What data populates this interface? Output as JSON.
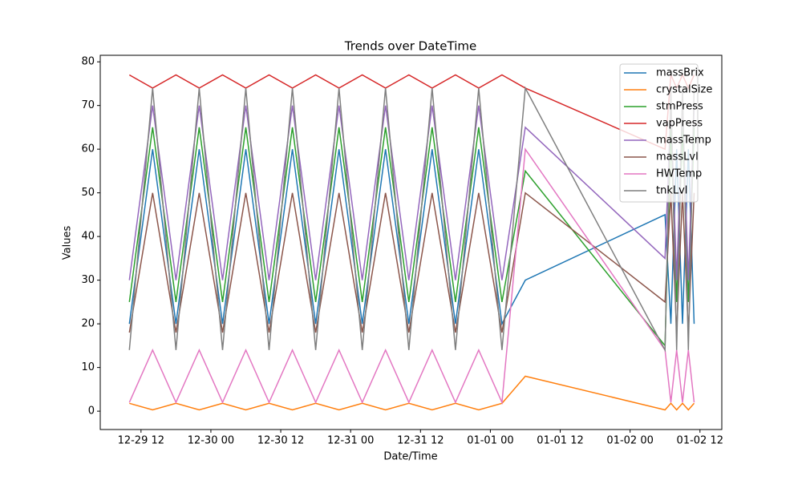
{
  "chart_data": {
    "type": "line",
    "title": "Trends over DateTime",
    "x_label": "Date/Time",
    "y_label": "Values",
    "x": [
      "12-29 10:00",
      "12-29 14:00",
      "12-29 18:00",
      "12-29 22:00",
      "12-30 02:00",
      "12-30 06:00",
      "12-30 10:00",
      "12-30 14:00",
      "12-30 18:00",
      "12-30 22:00",
      "12-31 02:00",
      "12-31 06:00",
      "12-31 10:00",
      "12-31 14:00",
      "12-31 18:00",
      "12-31 22:00",
      "01-01 02:00",
      "01-01 06:00",
      "01-02 06:00",
      "01-02 07:00",
      "01-02 08:00",
      "01-02 09:00",
      "01-02 10:00",
      "01-02 11:00"
    ],
    "series": [
      {
        "name": "massBrix",
        "color": "#1f77b4",
        "values": [
          20,
          60,
          20,
          60,
          20,
          60,
          20,
          60,
          20,
          60,
          20,
          60,
          20,
          60,
          20,
          60,
          20,
          30,
          45,
          20,
          60,
          20,
          60,
          20
        ]
      },
      {
        "name": "crystalSize",
        "color": "#ff7f0e",
        "values": [
          1.8,
          0.3,
          1.8,
          0.3,
          1.8,
          0.3,
          1.8,
          0.3,
          1.8,
          0.3,
          1.8,
          0.3,
          1.8,
          0.3,
          1.8,
          0.3,
          1.8,
          8,
          0.3,
          1.8,
          0.3,
          1.8,
          0.3,
          1.8
        ]
      },
      {
        "name": "stmPress",
        "color": "#2ca02c",
        "values": [
          25,
          65,
          25,
          65,
          25,
          65,
          25,
          65,
          25,
          65,
          25,
          65,
          25,
          65,
          25,
          65,
          25,
          55,
          15,
          65,
          25,
          65,
          25,
          65
        ]
      },
      {
        "name": "vapPress",
        "color": "#d62728",
        "values": [
          77,
          74,
          77,
          74,
          77,
          74,
          77,
          74,
          77,
          74,
          77,
          74,
          77,
          74,
          77,
          74,
          77,
          74,
          60,
          77,
          74,
          77,
          74,
          77
        ]
      },
      {
        "name": "massTemp",
        "color": "#9467bd",
        "values": [
          30,
          70,
          30,
          70,
          30,
          70,
          30,
          70,
          30,
          70,
          30,
          70,
          30,
          70,
          30,
          70,
          30,
          65,
          35,
          70,
          30,
          70,
          30,
          70
        ]
      },
      {
        "name": "massLvl",
        "color": "#8c564b",
        "values": [
          18,
          50,
          18,
          50,
          18,
          50,
          18,
          50,
          18,
          50,
          18,
          50,
          18,
          50,
          18,
          50,
          18,
          50,
          25,
          50,
          18,
          50,
          18,
          50
        ]
      },
      {
        "name": "HWTemp",
        "color": "#e377c2",
        "values": [
          2,
          14,
          2,
          14,
          2,
          14,
          2,
          14,
          2,
          14,
          2,
          14,
          2,
          14,
          2,
          14,
          2,
          60,
          14,
          2,
          14,
          2,
          14,
          2
        ]
      },
      {
        "name": "tnkLvl",
        "color": "#7f7f7f",
        "values": [
          14,
          74,
          14,
          74,
          14,
          74,
          14,
          74,
          14,
          74,
          14,
          74,
          14,
          74,
          14,
          74,
          14,
          74,
          14,
          74,
          14,
          74,
          14,
          74
        ]
      }
    ],
    "xlim": [
      "12-29 05:00",
      "01-02 15:45"
    ],
    "xticks": [
      "12-29 12",
      "12-30 00",
      "12-30 12",
      "12-31 00",
      "12-31 12",
      "01-01 00",
      "01-01 12",
      "01-02 00",
      "01-02 12"
    ],
    "ylim": [
      -4.2,
      81.5
    ],
    "yticks": [
      0,
      10,
      20,
      30,
      40,
      50,
      60,
      70,
      80
    ],
    "legend": "upper right"
  }
}
